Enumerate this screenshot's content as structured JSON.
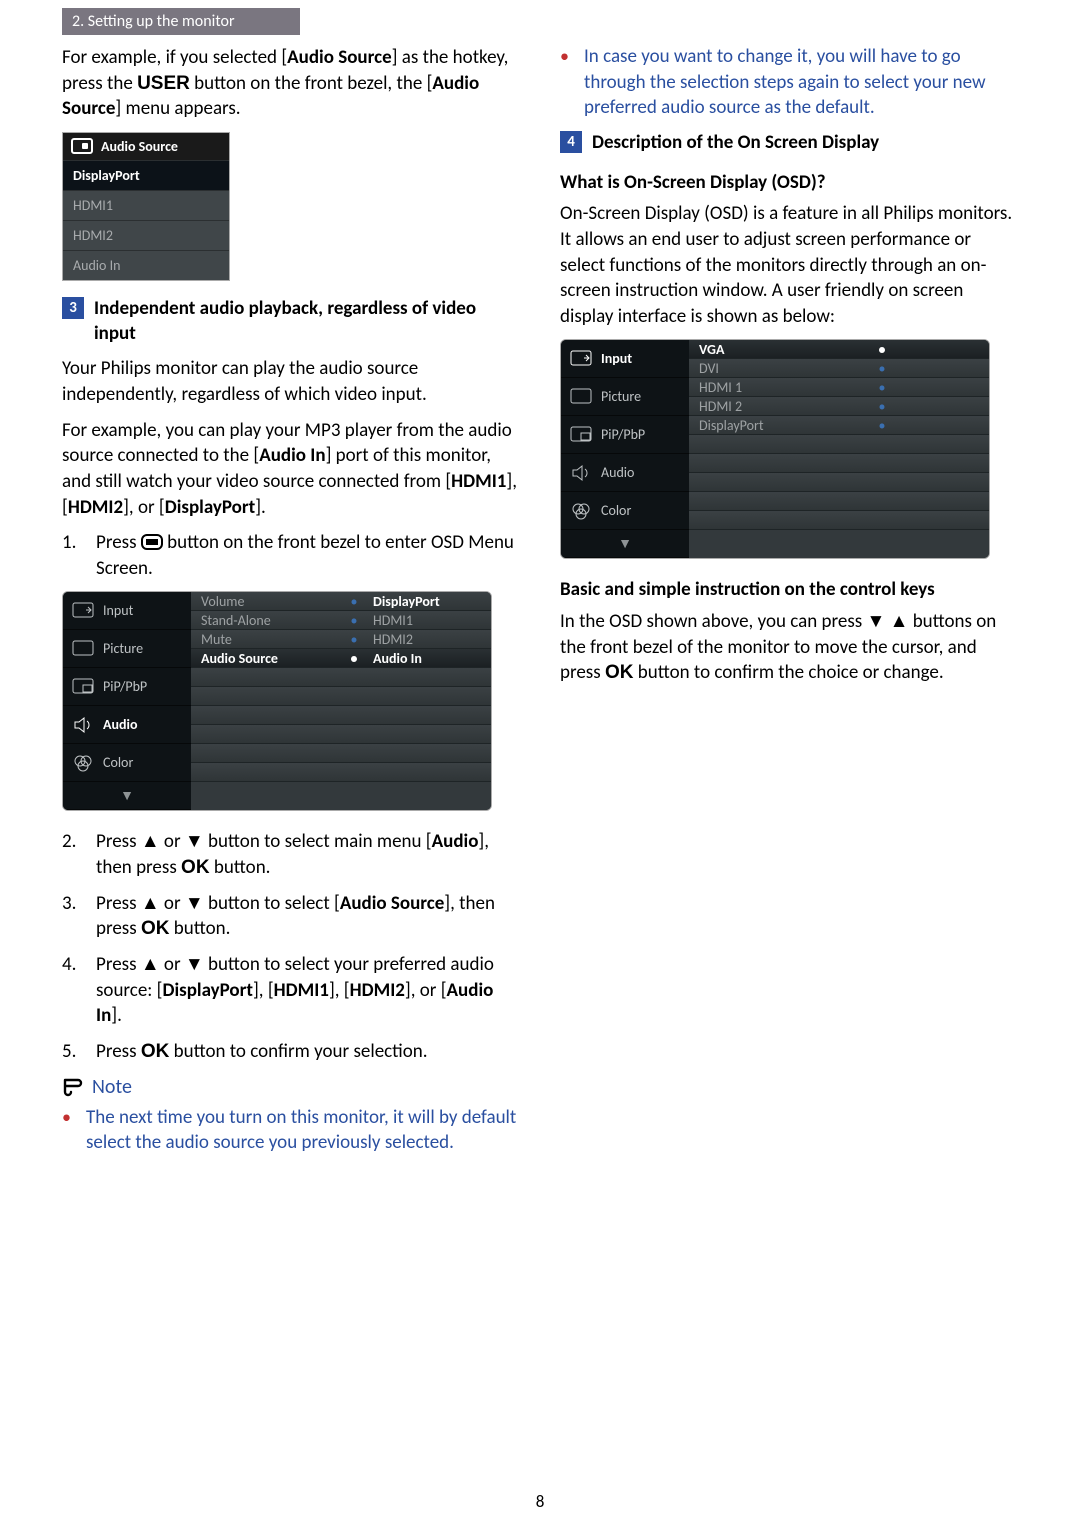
{
  "section_tab": "2. Setting up the monitor",
  "intro_p_parts": [
    "For example, if you selected [",
    "Audio Source",
    "] as the hotkey, press the ",
    "USER",
    " button on the front bezel, the [",
    "Audio Source",
    "] menu appears."
  ],
  "audio_menu": {
    "title": "Audio Source",
    "rows": [
      "DisplayPort",
      "HDMI1",
      "HDMI2",
      "Audio In"
    ],
    "selected_index": 0
  },
  "sec3_num": "3",
  "sec3_title": "Independent audio playback, regardless of video input",
  "sec3_p1": "Your Philips monitor can play the audio source independently, regardless of which video input.",
  "sec3_p2_parts": [
    "For example, you can play your MP3 player from the audio source connected to the [",
    "Audio In",
    "] port of this monitor, and still watch your video source connected from [",
    "HDMI1",
    "], [",
    "HDMI2",
    "], or [",
    "DisplayPort",
    "]."
  ],
  "step1_parts": [
    "Press ",
    "MENUICON",
    " button on the front bezel to enter OSD Menu Screen."
  ],
  "osd1": {
    "left": [
      "Input",
      "Picture",
      "PiP/PbP",
      "Audio",
      "Color"
    ],
    "left_sel": 3,
    "rows": [
      {
        "mid": "Volume",
        "val": "DisplayPort",
        "sel": false,
        "valsel": true
      },
      {
        "mid": "Stand-Alone",
        "val": "HDMI1"
      },
      {
        "mid": "Mute",
        "val": "HDMI2"
      },
      {
        "mid": "Audio Source",
        "val": "Audio In",
        "sel": true
      },
      {
        "mid": "",
        "val": ""
      },
      {
        "mid": "",
        "val": ""
      },
      {
        "mid": "",
        "val": ""
      },
      {
        "mid": "",
        "val": ""
      },
      {
        "mid": "",
        "val": ""
      },
      {
        "mid": "",
        "val": ""
      }
    ]
  },
  "steps_rest": [
    {
      "n": "2.",
      "t_parts": [
        "Press ",
        "▲",
        " or ",
        "▼",
        " button to select main menu [",
        "Audio",
        "], then press ",
        "OK",
        " button."
      ]
    },
    {
      "n": "3.",
      "t_parts": [
        "Press ",
        "▲",
        " or ",
        "▼",
        " button to select [",
        "Audio Source",
        "], then press ",
        "OK",
        " button."
      ]
    },
    {
      "n": "4.",
      "t_parts": [
        "Press ",
        "▲",
        " or ",
        "▼",
        " button to select your preferred audio source: [",
        "DisplayPort",
        "], [",
        "HDMI1",
        "], [",
        "HDMI2",
        "], or [",
        "Audio In",
        "]."
      ]
    },
    {
      "n": "5.",
      "t_parts": [
        "Press ",
        "OK",
        " button to confirm your selection."
      ]
    }
  ],
  "note_label": "Note",
  "note1": "The next time you turn on this monitor, it will by default select the audio source you previously selected.",
  "note2": "In case you want to change it, you will have to go through the selection steps again to select your new preferred audio source as the default.",
  "sec4_num": "4",
  "sec4_title": "Description of the On Screen Display",
  "sec4_q": "What is On-Screen Display (OSD)?",
  "sec4_p": "On-Screen Display (OSD) is a feature in all Philips monitors. It allows an end user to adjust screen performance or select functions of the monitors directly through an on-screen instruction window. A user friendly on screen display interface is shown as below:",
  "osd2": {
    "left": [
      "Input",
      "Picture",
      "PiP/PbP",
      "Audio",
      "Color"
    ],
    "left_sel": 0,
    "rows": [
      {
        "mid": "VGA",
        "sel": true
      },
      {
        "mid": "DVI"
      },
      {
        "mid": "HDMI 1"
      },
      {
        "mid": "HDMI 2"
      },
      {
        "mid": "DisplayPort"
      },
      {
        "mid": ""
      },
      {
        "mid": ""
      },
      {
        "mid": ""
      },
      {
        "mid": ""
      },
      {
        "mid": ""
      }
    ]
  },
  "basic_h": "Basic and simple instruction on the control keys",
  "basic_p_parts": [
    "In the OSD shown above, you can press ",
    "▼",
    " ",
    "▲",
    " buttons on the front bezel of the monitor to move the cursor, and press ",
    "OK",
    " button to confirm the choice or change."
  ],
  "page_num": "8",
  "colors": {
    "blue": "#2a4fa0",
    "red": "#c23030"
  }
}
